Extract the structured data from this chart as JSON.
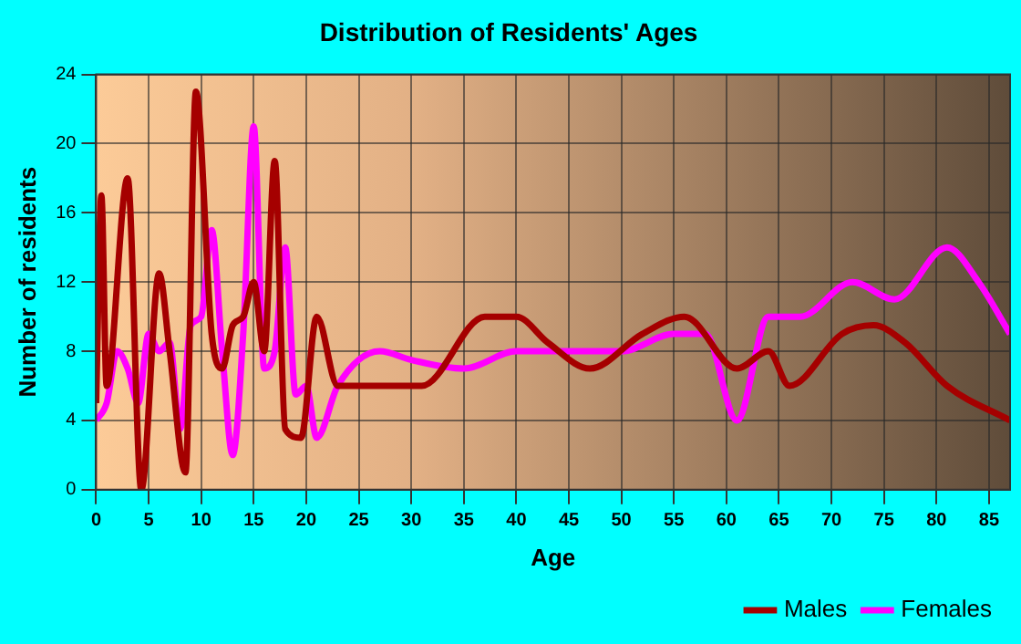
{
  "chart_data": {
    "type": "line",
    "title": "Distribution of Residents' Ages",
    "xlabel": "Age",
    "ylabel": "Number of residents",
    "xlim": [
      0,
      87
    ],
    "xticks": [
      0,
      5,
      10,
      15,
      20,
      25,
      30,
      35,
      40,
      45,
      50,
      55,
      60,
      65,
      70,
      75,
      80,
      85
    ],
    "ylim": [
      0,
      24
    ],
    "yticks": [
      0,
      4,
      8,
      12,
      16,
      20,
      24
    ],
    "grid": true,
    "legend": "bottom right",
    "marker": "none",
    "line_style": "solid",
    "series": [
      {
        "name": "Males",
        "color": "#a50000",
        "x": [
          0,
          0.5,
          1,
          3,
          4.3,
          6,
          7,
          8.5,
          9.5,
          11,
          12,
          13,
          14,
          15,
          16,
          17,
          18,
          19.5,
          21,
          23,
          27,
          31,
          37,
          40,
          43,
          47,
          52,
          56,
          61,
          64,
          66,
          71,
          74,
          77,
          81,
          87
        ],
        "values": [
          5,
          17,
          6,
          18,
          0,
          12.5,
          8,
          1,
          23,
          9,
          7,
          9.5,
          10,
          12,
          8,
          19,
          3.5,
          3,
          10,
          6,
          6,
          6,
          10,
          10,
          8.5,
          7,
          9,
          10,
          7,
          8,
          6,
          9,
          9.5,
          8.5,
          6,
          4
        ]
      },
      {
        "name": "Females",
        "color": "#ff00ff",
        "x": [
          0,
          1,
          2,
          3,
          4,
          5,
          6,
          7,
          8,
          9,
          10,
          11,
          12,
          13,
          14,
          15,
          16,
          17,
          18,
          19,
          20,
          21,
          23,
          27,
          30,
          35,
          40,
          45,
          50,
          55,
          58,
          61,
          64,
          67,
          72,
          76,
          81,
          84,
          87
        ],
        "values": [
          4,
          5,
          8,
          7,
          5,
          9,
          8,
          8.5,
          3.5,
          9.5,
          10,
          15,
          8,
          2,
          9,
          21,
          7,
          8,
          14,
          5.5,
          6,
          3,
          6,
          8,
          7.5,
          7,
          8,
          8,
          8,
          9,
          9,
          4,
          10,
          10,
          12,
          11,
          14,
          12,
          9
        ]
      }
    ]
  }
}
